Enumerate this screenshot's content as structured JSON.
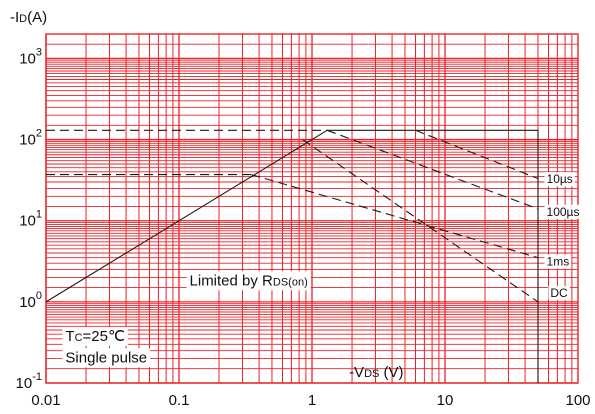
{
  "chart_data": {
    "type": "line",
    "title": "",
    "ylabel": {
      "prefix": "-I",
      "sub": "D",
      "suffix": "(A)"
    },
    "xlabel": {
      "prefix": "-V",
      "sub": "DS",
      "suffix": " (V)"
    },
    "x_scale": "log",
    "y_scale": "log",
    "xlim": [
      0.01,
      100
    ],
    "ylim": [
      0.1,
      2000
    ],
    "grid": true,
    "grid_color": "#e8242b",
    "x_ticks": [
      {
        "value": 0.01,
        "label": "0.01"
      },
      {
        "value": 0.1,
        "label": "0.1"
      },
      {
        "value": 1,
        "label": "1"
      },
      {
        "value": 10,
        "label": "10"
      },
      {
        "value": 100,
        "label": "100"
      }
    ],
    "y_ticks": [
      {
        "value": 0.1,
        "base": "10",
        "exp": "-1"
      },
      {
        "value": 1,
        "base": "10",
        "exp": "0"
      },
      {
        "value": 10,
        "base": "10",
        "exp": "1"
      },
      {
        "value": 100,
        "base": "10",
        "exp": "2"
      },
      {
        "value": 1000,
        "base": "10",
        "exp": "3"
      }
    ],
    "series": [
      {
        "name": "Limited by RDS(on)",
        "style": "solid",
        "points": [
          [
            0.01,
            1.0
          ],
          [
            1.3,
            130
          ]
        ]
      },
      {
        "name": "10µs",
        "style": "dashed",
        "points": [
          [
            6.0,
            130
          ],
          [
            50,
            33
          ]
        ]
      },
      {
        "name": "100µs",
        "style": "dashed",
        "points": [
          [
            1.3,
            130
          ],
          [
            50,
            14
          ]
        ]
      },
      {
        "name": "1ms",
        "style": "dashed",
        "points": [
          [
            0.35,
            37
          ],
          [
            50,
            3.5
          ]
        ]
      },
      {
        "name": "DC",
        "style": "dashed",
        "points": [
          [
            0.85,
            100
          ],
          [
            50,
            1.0
          ]
        ]
      },
      {
        "name": "",
        "style": "dashed",
        "points": [
          [
            0.01,
            130
          ],
          [
            1.3,
            130
          ]
        ]
      },
      {
        "name": "",
        "style": "dashed",
        "points": [
          [
            0.01,
            37
          ],
          [
            0.35,
            37
          ]
        ]
      },
      {
        "name": "",
        "style": "solid",
        "points": [
          [
            1.3,
            130
          ],
          [
            50,
            130
          ]
        ]
      },
      {
        "name": "",
        "style": "solid",
        "points": [
          [
            50,
            0.1
          ],
          [
            50,
            130
          ]
        ]
      }
    ],
    "annotations": {
      "rds_limit": {
        "prefix": "Limited by R",
        "sub": "DS(on)",
        "x": 0.12,
        "y": 1.6
      },
      "temperature": {
        "prefix": "T",
        "sub": "C",
        "suffix": "=25℃",
        "x": 0.014,
        "y": 0.33
      },
      "pulse": {
        "text": "Single pulse",
        "x": 0.014,
        "y": 0.18
      },
      "curve_labels": [
        {
          "text": "10µs",
          "x": 58,
          "y": 29
        },
        {
          "text": "100µs",
          "x": 58,
          "y": 11.5
        },
        {
          "text": "1ms",
          "x": 58,
          "y": 2.8
        },
        {
          "text": "DC",
          "x": 62,
          "y": 1.15
        }
      ]
    }
  }
}
